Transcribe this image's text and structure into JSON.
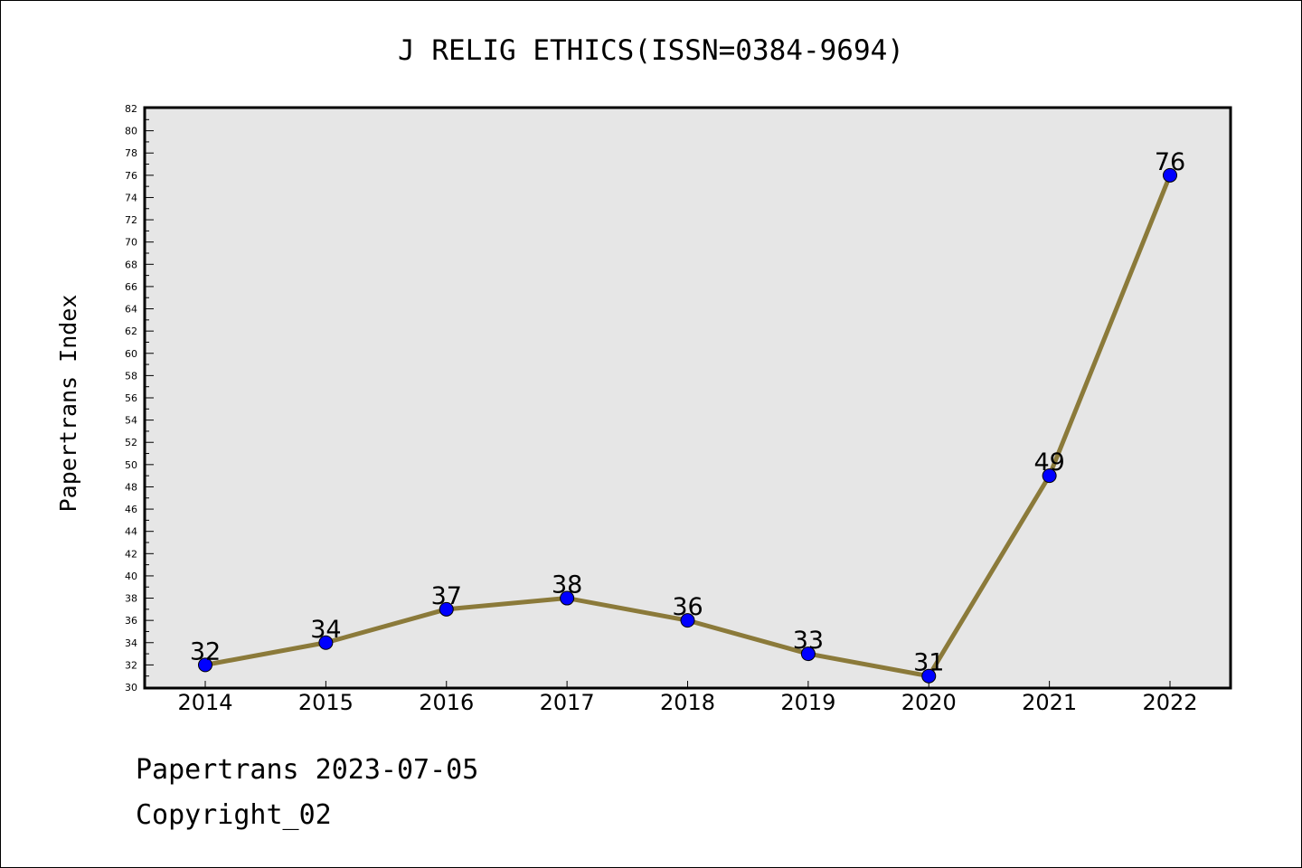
{
  "chart_data": {
    "type": "line",
    "title": "J RELIG ETHICS(ISSN=0384-9694)",
    "xlabel": "",
    "ylabel": "Papertrans Index",
    "categories": [
      "2014",
      "2015",
      "2016",
      "2017",
      "2018",
      "2019",
      "2020",
      "2021",
      "2022"
    ],
    "series": [
      {
        "values": [
          32,
          34,
          37,
          38,
          36,
          33,
          31,
          49,
          76
        ]
      }
    ],
    "ylim": [
      30,
      82
    ],
    "ytick_step": 2,
    "grid": false,
    "legend": "none",
    "colors": {
      "line": "#8b7a3a",
      "marker": "#0000ff",
      "plot_background": "#e6e6e6"
    }
  },
  "footer": {
    "line1": "Papertrans 2023-07-05",
    "line2": "Copyright_02"
  }
}
